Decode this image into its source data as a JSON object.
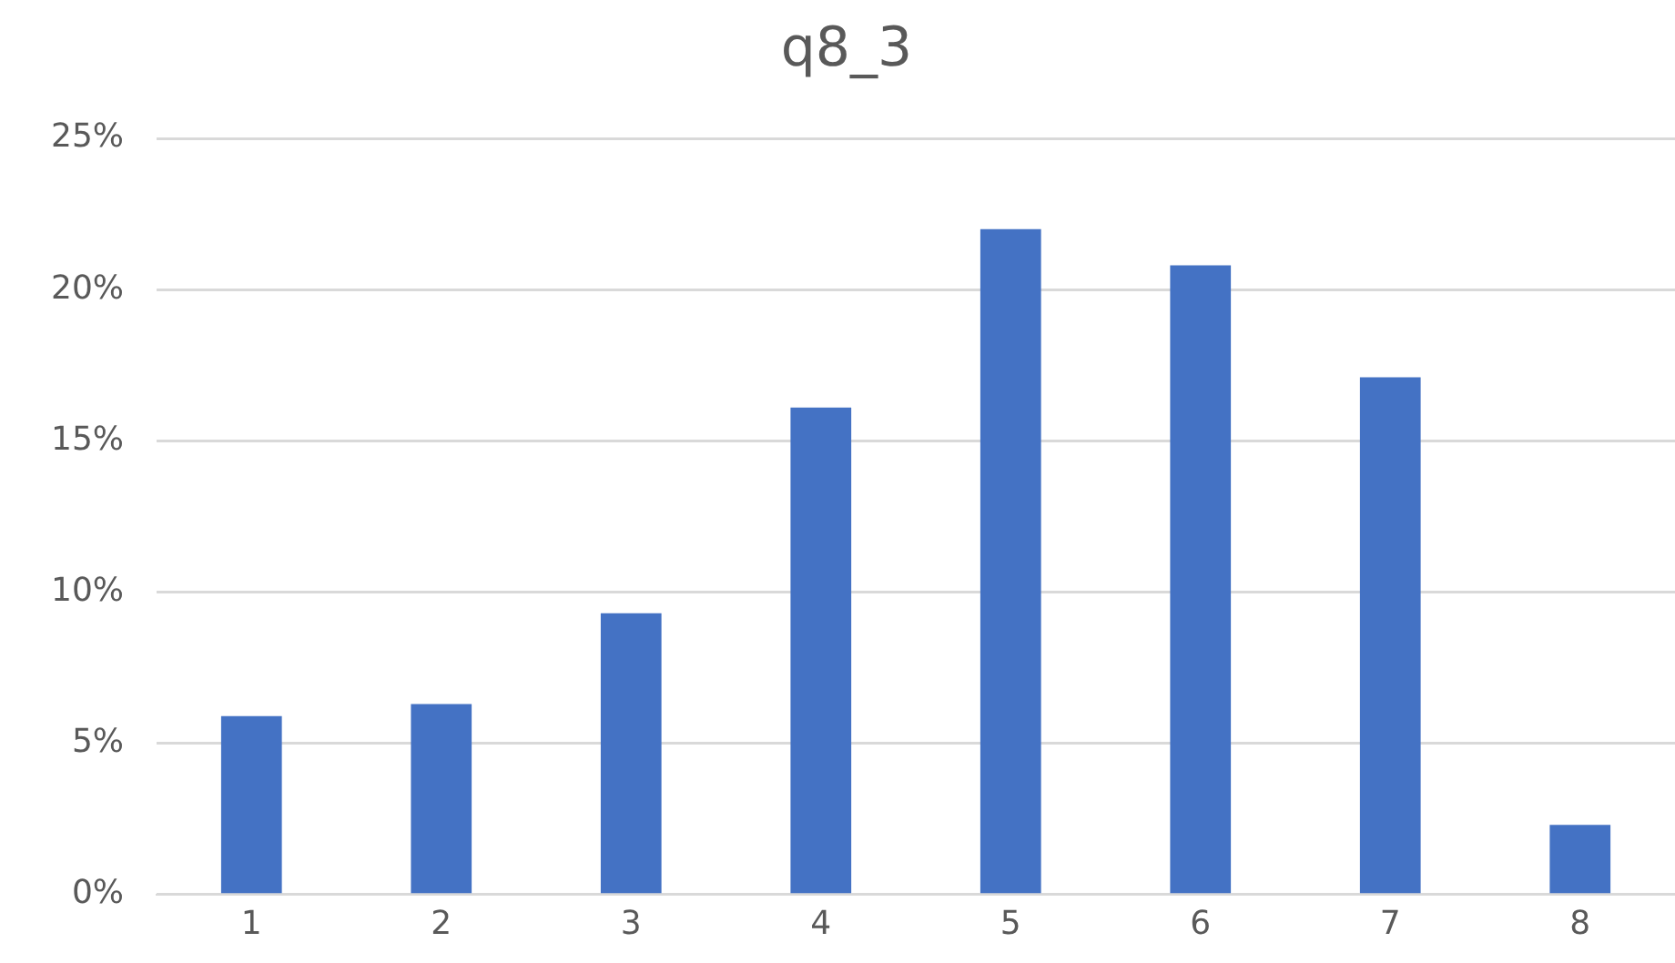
{
  "chart_data": {
    "type": "bar",
    "title": "q8_3",
    "categories": [
      "1",
      "2",
      "3",
      "4",
      "5",
      "6",
      "7",
      "8"
    ],
    "values": [
      5.9,
      6.3,
      9.3,
      16.1,
      22.0,
      20.8,
      17.1,
      2.3
    ],
    "color": "#4472c4",
    "ylim": [
      0,
      25
    ],
    "yticks": [
      {
        "value": 0,
        "label": "0%"
      },
      {
        "value": 5,
        "label": "5%"
      },
      {
        "value": 10,
        "label": "10%"
      },
      {
        "value": 15,
        "label": "15%"
      },
      {
        "value": 20,
        "label": "20%"
      },
      {
        "value": 25,
        "label": "25%"
      }
    ],
    "grid": "y",
    "legend": false
  }
}
